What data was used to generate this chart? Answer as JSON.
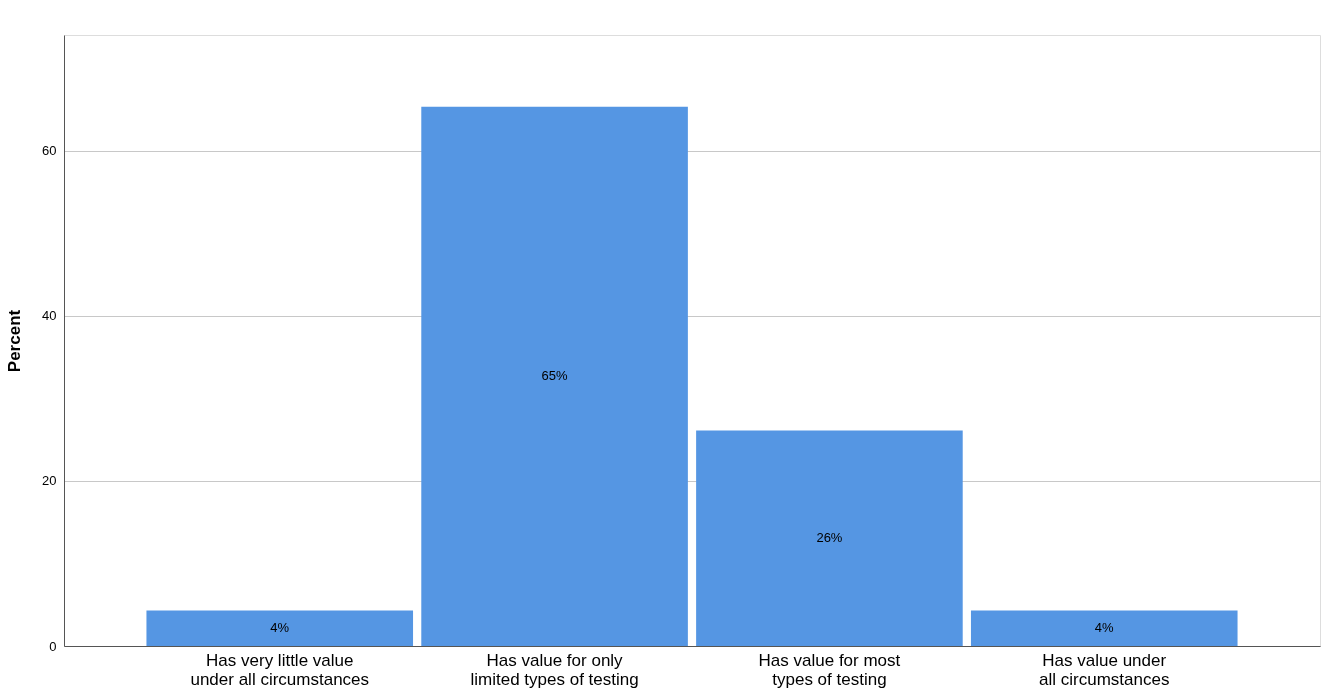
{
  "chart_data": {
    "type": "bar",
    "ylabel": "Percent",
    "categories": [
      "Has very little value under all circumstances",
      "Has value for only limited types of testing",
      "Has value for most types of testing",
      "Has value under all circumstances"
    ],
    "values": [
      4.3,
      65.3,
      26.1,
      4.3
    ],
    "value_labels": [
      "4%",
      "65%",
      "26%",
      "4%"
    ],
    "color": "#5596e3",
    "ylim": [
      0,
      74
    ],
    "yticks": [
      0,
      20,
      40,
      60
    ],
    "grid": "y"
  }
}
